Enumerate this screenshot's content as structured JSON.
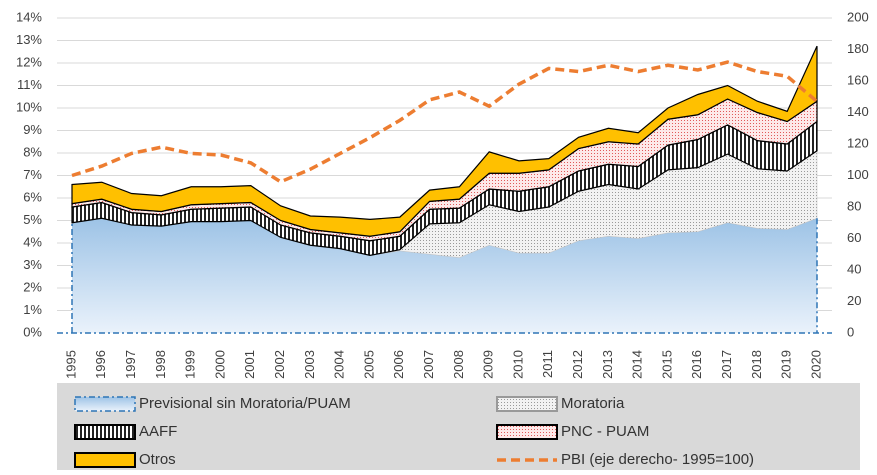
{
  "chart_data": {
    "type": "stacked-area",
    "categories": [
      "1995",
      "1996",
      "1997",
      "1998",
      "1999",
      "2000",
      "2001",
      "2002",
      "2003",
      "2004",
      "2005",
      "2006",
      "2007",
      "2008",
      "2009",
      "2010",
      "2011",
      "2012",
      "2013",
      "2014",
      "2015",
      "2016",
      "2017",
      "2018",
      "2019",
      "2020"
    ],
    "ylim": [
      0,
      14
    ],
    "yticks": [
      {
        "value": 0,
        "label": "0%"
      },
      {
        "value": 1,
        "label": "1%"
      },
      {
        "value": 2,
        "label": "2%"
      },
      {
        "value": 3,
        "label": "3%"
      },
      {
        "value": 4,
        "label": "4%"
      },
      {
        "value": 5,
        "label": "5%"
      },
      {
        "value": 6,
        "label": "6%"
      },
      {
        "value": 7,
        "label": "7%"
      },
      {
        "value": 8,
        "label": "8%"
      },
      {
        "value": 9,
        "label": "9%"
      },
      {
        "value": 10,
        "label": "10%"
      },
      {
        "value": 11,
        "label": "11%"
      },
      {
        "value": 12,
        "label": "12%"
      },
      {
        "value": 13,
        "label": "13%"
      },
      {
        "value": 14,
        "label": "14%"
      }
    ],
    "y2lim": [
      0,
      200
    ],
    "y2ticks": [
      0,
      20,
      40,
      60,
      80,
      100,
      120,
      140,
      160,
      180,
      200
    ],
    "grid": true,
    "series": [
      {
        "name": "Previsional sin Moratoria/PUAM",
        "color": "#bdd7ee",
        "values": [
          4.9,
          5.1,
          4.8,
          4.75,
          4.95,
          4.95,
          5.0,
          4.25,
          3.9,
          3.75,
          3.45,
          3.65,
          3.5,
          3.35,
          3.9,
          3.55,
          3.55,
          4.1,
          4.3,
          4.2,
          4.45,
          4.5,
          4.9,
          4.65,
          4.6,
          5.1
        ]
      },
      {
        "name": "Moratoria",
        "color": "#d9d9d9",
        "values": [
          0,
          0,
          0,
          0,
          0,
          0,
          0,
          0,
          0,
          0,
          0,
          0.05,
          1.35,
          1.55,
          1.8,
          1.85,
          2.05,
          2.2,
          2.3,
          2.2,
          2.8,
          2.85,
          3.05,
          2.65,
          2.6,
          3.0
        ]
      },
      {
        "name": "AAFF",
        "color": "#000000",
        "values": [
          0.7,
          0.7,
          0.55,
          0.5,
          0.55,
          0.6,
          0.6,
          0.55,
          0.55,
          0.55,
          0.65,
          0.6,
          0.65,
          0.65,
          0.7,
          0.9,
          0.9,
          0.9,
          0.9,
          1.0,
          1.1,
          1.25,
          1.3,
          1.25,
          1.2,
          1.3
        ]
      },
      {
        "name": "PNC - PUAM",
        "color": "#f4a6a6",
        "values": [
          0.15,
          0.15,
          0.15,
          0.15,
          0.2,
          0.2,
          0.2,
          0.2,
          0.15,
          0.15,
          0.2,
          0.2,
          0.35,
          0.4,
          0.7,
          0.8,
          0.75,
          1.0,
          1.0,
          1.0,
          1.15,
          1.1,
          1.15,
          1.25,
          1.0,
          0.9
        ]
      },
      {
        "name": "Otros",
        "color": "#ffc000",
        "values": [
          0.85,
          0.75,
          0.7,
          0.7,
          0.8,
          0.75,
          0.75,
          0.65,
          0.6,
          0.7,
          0.75,
          0.65,
          0.5,
          0.55,
          0.95,
          0.55,
          0.5,
          0.5,
          0.6,
          0.5,
          0.5,
          0.9,
          0.6,
          0.5,
          0.45,
          2.45
        ]
      },
      {
        "name": "PBI  (eje derecho- 1995=100)",
        "color": "#ed7d31",
        "axis": "y2",
        "values": [
          100,
          106,
          114,
          118,
          114,
          113,
          108,
          96,
          104,
          114,
          124,
          135,
          148,
          153,
          144,
          158,
          168,
          166,
          170,
          166,
          170,
          167,
          172,
          166,
          163,
          147
        ]
      }
    ]
  }
}
